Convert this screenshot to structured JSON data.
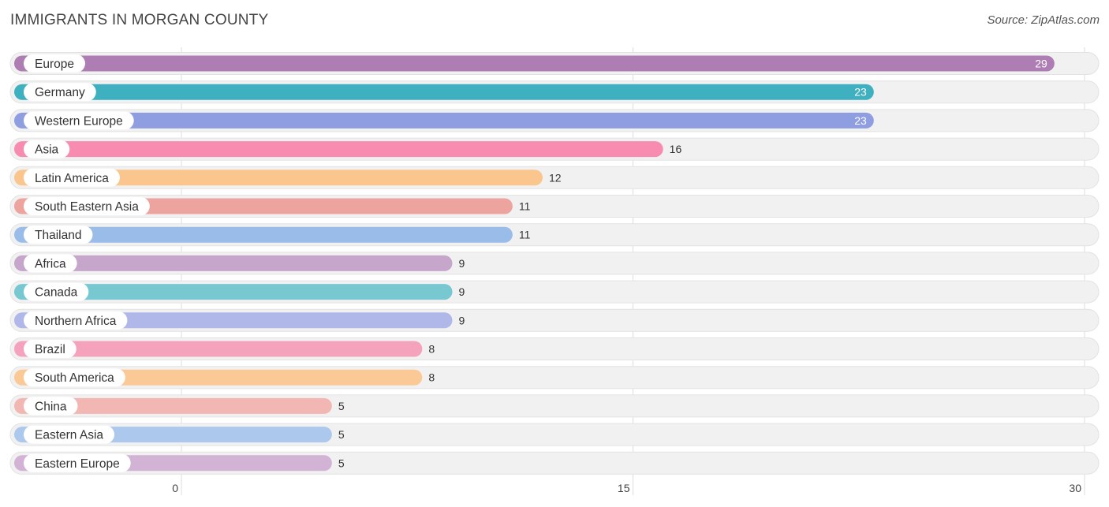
{
  "header": {
    "title": "IMMIGRANTS IN MORGAN COUNTY",
    "source": "Source: ZipAtlas.com"
  },
  "chart_data": {
    "type": "bar",
    "orientation": "horizontal",
    "title": "IMMIGRANTS IN MORGAN COUNTY",
    "xlabel": "",
    "ylabel": "",
    "xlim": [
      0,
      30
    ],
    "ticks": [
      0,
      15,
      30
    ],
    "grid": true,
    "categories": [
      "Europe",
      "Germany",
      "Western Europe",
      "Asia",
      "Latin America",
      "South Eastern Asia",
      "Thailand",
      "Africa",
      "Canada",
      "Northern Africa",
      "Brazil",
      "South America",
      "China",
      "Eastern Asia",
      "Eastern Europe"
    ],
    "values": [
      29,
      23,
      23,
      16,
      12,
      11,
      11,
      9,
      9,
      9,
      8,
      8,
      5,
      5,
      5
    ],
    "colors": [
      "#ae7db4",
      "#3fb0bf",
      "#8f9ee0",
      "#f78bb0",
      "#fbc68d",
      "#eda39e",
      "#99bde8",
      "#c7a6cc",
      "#77c8d0",
      "#b0b8ea",
      "#f5a3bd",
      "#fbc996",
      "#f3b7b3",
      "#acc8ec",
      "#d2b3d6"
    ]
  }
}
